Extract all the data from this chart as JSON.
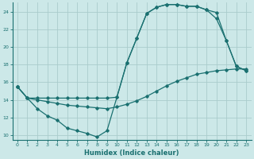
{
  "xlabel": "Humidex (Indice chaleur)",
  "bg_color": "#cce8e8",
  "grid_color": "#aacccc",
  "line_color": "#1a7070",
  "xlim": [
    -0.5,
    23.5
  ],
  "ylim": [
    9.5,
    25.0
  ],
  "xticks": [
    0,
    1,
    2,
    3,
    4,
    5,
    6,
    7,
    8,
    9,
    10,
    11,
    12,
    13,
    14,
    15,
    16,
    17,
    18,
    19,
    20,
    21,
    22,
    23
  ],
  "yticks": [
    10,
    12,
    14,
    16,
    18,
    20,
    22,
    24
  ],
  "line1_x": [
    0,
    1,
    2,
    3,
    4,
    5,
    6,
    7,
    8,
    9,
    10,
    11,
    12,
    13,
    14,
    15,
    16,
    17,
    18,
    19,
    20,
    21,
    22,
    23
  ],
  "line1_y": [
    15.5,
    14.2,
    13.0,
    12.2,
    11.7,
    10.8,
    10.5,
    10.2,
    9.8,
    10.5,
    14.3,
    18.2,
    21.0,
    23.8,
    24.5,
    24.8,
    24.8,
    24.6,
    24.6,
    24.2,
    23.9,
    20.7,
    17.8,
    17.3
  ],
  "line2_x": [
    0,
    1,
    2,
    3,
    4,
    5,
    6,
    7,
    8,
    9,
    10,
    11,
    12,
    13,
    14,
    15,
    16,
    17,
    18,
    19,
    20,
    21,
    22,
    23
  ],
  "line2_y": [
    15.5,
    14.2,
    14.2,
    14.2,
    14.2,
    14.2,
    14.2,
    14.2,
    14.2,
    14.2,
    14.3,
    18.2,
    21.0,
    23.8,
    24.5,
    24.8,
    24.8,
    24.6,
    24.6,
    24.2,
    23.2,
    20.7,
    17.8,
    17.3
  ],
  "line3_x": [
    0,
    1,
    2,
    3,
    4,
    5,
    6,
    7,
    8,
    9,
    10,
    11,
    12,
    13,
    14,
    15,
    16,
    17,
    18,
    19,
    20,
    21,
    22,
    23
  ],
  "line3_y": [
    15.5,
    14.2,
    14.0,
    13.8,
    13.6,
    13.4,
    13.3,
    13.2,
    13.1,
    13.0,
    13.2,
    13.5,
    13.9,
    14.4,
    15.0,
    15.6,
    16.1,
    16.5,
    16.9,
    17.1,
    17.3,
    17.4,
    17.5,
    17.5
  ]
}
